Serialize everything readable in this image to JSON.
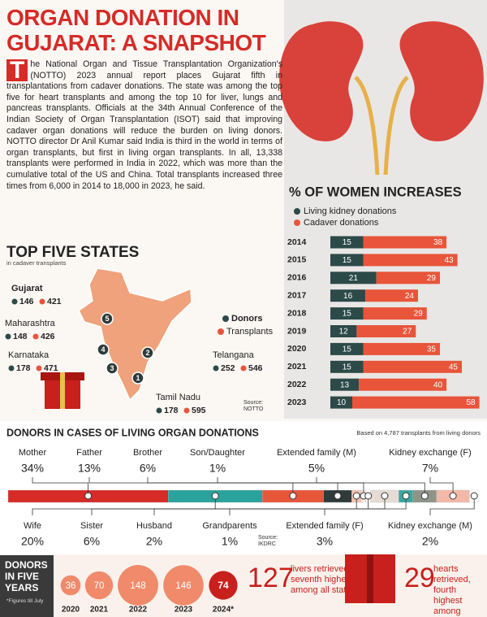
{
  "header": {
    "title": [
      "ORGAN DONATION IN",
      "GUJARAT: A SNAPSHOT"
    ]
  },
  "article": {
    "text": "The National Organ and Tissue Transplantation Organization's (NOTTO) 2023 annual report places Gujarat fifth in transplantations from cadaver donations. The state was among the top five for heart transplants and among the top 10 for liver, lungs and pancreas transplants. Officials at the 34th Annual Conference of the Indian Society of Organ Transplantation (ISOT) said that improving cadaver organ donations will reduce the burden on living donors. NOTTO director Dr Anil Kumar said India is third in the world in terms of organ transplants, but first in living organ transplants. In all, 13,338 transplants were performed in India in 2022, which was more than the cumulative total of the US and China. Total transplants increased three times from 6,000 in 2014 to 18,000 in 2023, he said."
  },
  "top_states": {
    "title": "TOP FIVE STATES",
    "subtitle": "in cadaver transplants",
    "legend": [
      "Donors",
      "Transplants"
    ],
    "colors": [
      "#2c4a48",
      "#e8553a"
    ],
    "source": "Source: NOTTO",
    "states": [
      {
        "name": "Gujarat",
        "rank": 5,
        "donors": 146,
        "transplants": 421
      },
      {
        "name": "Maharashtra",
        "rank": 4,
        "donors": 148,
        "transplants": 426
      },
      {
        "name": "Karnataka",
        "rank": 3,
        "donors": 178,
        "transplants": 471
      },
      {
        "name": "Telangana",
        "rank": 2,
        "donors": 252,
        "transplants": 546
      },
      {
        "name": "Tamil Nadu",
        "rank": 1,
        "donors": 178,
        "transplants": 595
      }
    ]
  },
  "chart_data": [
    {
      "type": "bar",
      "orientation": "horizontal",
      "stacked": true,
      "title": "% OF WOMEN INCREASES",
      "categories": [
        "2014",
        "2015",
        "2016",
        "2017",
        "2018",
        "2019",
        "2020",
        "2021",
        "2022",
        "2023"
      ],
      "series": [
        {
          "name": "Living kidney donations",
          "color": "#2c4a48",
          "values": [
            15,
            15,
            21,
            16,
            15,
            12,
            15,
            15,
            13,
            10
          ]
        },
        {
          "name": "Cadaver donations",
          "color": "#e8553a",
          "values": [
            38,
            43,
            29,
            24,
            29,
            27,
            35,
            45,
            40,
            58
          ]
        }
      ]
    },
    {
      "type": "share-bar",
      "title": "DONORS IN CASES OF LIVING ORGAN DONATIONS",
      "note": "Based on 4,787 transplants from living donors",
      "source": "Source: IKDRC",
      "categories": [
        "Mother",
        "Wife",
        "Father",
        "Brother",
        "Husband",
        "Son/Daughter",
        "Grandparents",
        "Sister",
        "Extended family (F)",
        "Extended family (M)",
        "Kidney exchange (F)",
        "Kidney exchange (M)"
      ],
      "values": [
        34,
        20,
        13,
        6,
        2,
        1,
        1,
        6,
        3,
        5,
        7,
        2
      ],
      "value_labels": [
        "34%",
        "20%",
        "13%",
        "6%",
        "2%",
        "1%",
        "1%",
        "6%",
        "3%",
        "5%",
        "7%",
        "2%"
      ],
      "colors": [
        "#d62b27",
        "#2aa39c",
        "#e8563a",
        "#2f3b3a",
        "#f4c2b2",
        "#fbe9e2",
        "#ffffff",
        "#e7dcd4",
        "#3aa7a0",
        "#8e9488",
        "#f2b8a8",
        "#ffffff"
      ]
    },
    {
      "type": "bubble",
      "title": "DONORS IN FIVE YEARS",
      "note": "*Figures till July",
      "categories": [
        "2020",
        "2021",
        "2022",
        "2023",
        "2024*"
      ],
      "values": [
        36,
        70,
        148,
        146,
        74
      ],
      "colors": [
        "#f08a6a",
        "#f08a6a",
        "#f08a6a",
        "#f08a6a",
        "#c8201c"
      ]
    }
  ],
  "highlights": [
    {
      "value": 127,
      "text": "livers retrieved, seventh highest among all states"
    },
    {
      "value": 29,
      "text": "hearts retrieved, fourth highest among states"
    }
  ]
}
